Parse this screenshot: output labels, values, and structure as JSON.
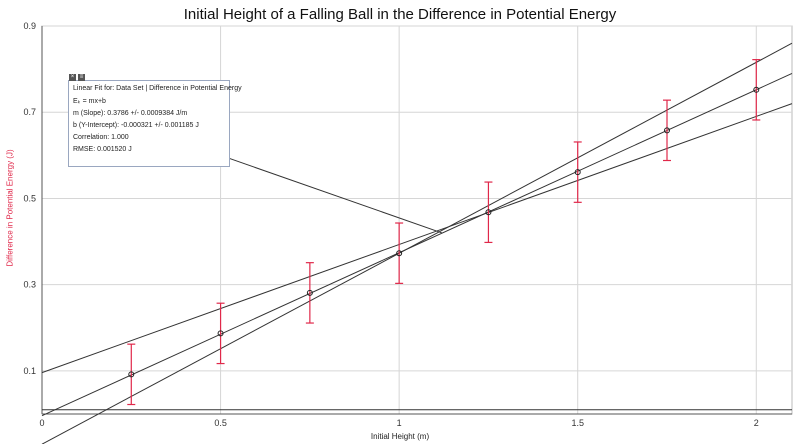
{
  "chart_data": {
    "type": "scatter",
    "title": "Initial Height of a Falling Ball in the Difference in Potential Energy",
    "xlabel": "Initial Height (m)",
    "ylabel": "Difference in Potential Energy (J)",
    "xlim": [
      0,
      2.1
    ],
    "ylim": [
      0,
      0.9
    ],
    "x_ticks": [
      "0",
      "0.5",
      "1",
      "1.5",
      "2"
    ],
    "y_ticks": [
      "0.1",
      "0.3",
      "0.5",
      "0.7",
      "0.9"
    ],
    "x_tick_values": [
      0,
      0.5,
      1,
      1.5,
      2
    ],
    "y_tick_values": [
      0.1,
      0.3,
      0.5,
      0.7,
      0.9
    ],
    "grid": true,
    "points": [
      {
        "x": 0.25,
        "y": 0.092,
        "err": 0.07
      },
      {
        "x": 0.5,
        "y": 0.187,
        "err": 0.07
      },
      {
        "x": 0.75,
        "y": 0.281,
        "err": 0.07
      },
      {
        "x": 1.0,
        "y": 0.373,
        "err": 0.07
      },
      {
        "x": 1.25,
        "y": 0.468,
        "err": 0.07
      },
      {
        "x": 1.5,
        "y": 0.561,
        "err": 0.07
      },
      {
        "x": 1.75,
        "y": 0.658,
        "err": 0.07
      },
      {
        "x": 2.0,
        "y": 0.752,
        "err": 0.07
      }
    ],
    "lines": [
      {
        "x1": 0,
        "y1": 0.096,
        "x2": 2.1,
        "y2": 0.72
      },
      {
        "x1": 0,
        "y1": -0.004,
        "x2": 2.1,
        "y2": 0.79
      },
      {
        "x1": 0,
        "y1": -0.07,
        "x2": 2.1,
        "y2": 0.86
      },
      {
        "x1": 0,
        "y1": 0.01,
        "x2": 2.1,
        "y2": 0.01
      }
    ],
    "annotation_pointer": {
      "x1": 0.5,
      "y1": 0.6,
      "x2": 1.12,
      "y2": 0.42
    },
    "fit_box": {
      "title": "Linear Fit for: Data Set | Difference in Potential Energy",
      "equation": "Eₖ = mx+b",
      "slope": "m (Slope): 0.3786 +/- 0.0009384 J/m",
      "intercept": "b (Y-Intercept): -0.000321 +/- 0.001185 J",
      "correlation": "Correlation: 1.000",
      "rmse": "RMSE: 0.001520 J"
    },
    "colors": {
      "error_bar": "#e0284a",
      "fit_line": "#333333",
      "point": "#222222"
    }
  }
}
